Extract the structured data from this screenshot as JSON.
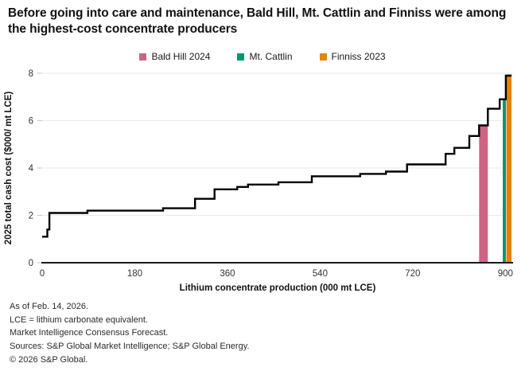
{
  "title": "Before going into care and maintenance, Bald Hill, Mt. Cattlin and Finniss were among the highest-cost concentrate producers",
  "legend": [
    {
      "label": "Bald Hill 2024",
      "color": "#ce6484"
    },
    {
      "label": "Mt. Cattlin",
      "color": "#009670"
    },
    {
      "label": "Finniss 2023",
      "color": "#e2830a"
    }
  ],
  "chart_data": {
    "type": "line",
    "subtype": "step-cost-curve",
    "xlabel": "Lithium concentrate production (000 mt LCE)",
    "ylabel": "2025 total cash cost ($000/ mt LCE)",
    "xlim": [
      0,
      915
    ],
    "ylim": [
      0,
      8
    ],
    "x_ticks": [
      0,
      180,
      360,
      540,
      720,
      900
    ],
    "y_ticks": [
      0,
      2,
      4,
      6,
      8
    ],
    "grid": "horizontal-only",
    "line_color": "#000000",
    "gridline_color": "#eaeaea",
    "axis_color": "#1a1a1a",
    "steps": [
      [
        0,
        1.1
      ],
      [
        10,
        1.4
      ],
      [
        14,
        2.1
      ],
      [
        88,
        2.2
      ],
      [
        235,
        2.3
      ],
      [
        297,
        2.7
      ],
      [
        335,
        3.1
      ],
      [
        379,
        3.2
      ],
      [
        400,
        3.3
      ],
      [
        459,
        3.4
      ],
      [
        524,
        3.65
      ],
      [
        618,
        3.75
      ],
      [
        668,
        3.85
      ],
      [
        709,
        4.15
      ],
      [
        784,
        4.6
      ],
      [
        801,
        4.85
      ],
      [
        830,
        5.35
      ],
      [
        849,
        5.8
      ],
      [
        866,
        6.5
      ],
      [
        889,
        6.9
      ],
      [
        901,
        7.9
      ],
      [
        912,
        7.9
      ]
    ],
    "highlight_bars": [
      {
        "name": "Bald Hill 2024",
        "x_start": 849,
        "x_end": 866,
        "cost": 5.8,
        "color": "#ce6484"
      },
      {
        "name": "Mt. Cattlin",
        "x_start": 895,
        "x_end": 901,
        "cost": 6.9,
        "color": "#009670"
      },
      {
        "name": "Finniss 2023",
        "x_start": 902,
        "x_end": 912,
        "cost": 7.95,
        "color": "#e2830a"
      }
    ]
  },
  "footnotes": [
    "As of Feb. 14, 2026.",
    "LCE = lithium carbonate equivalent.",
    "Market Intelligence Consensus Forecast.",
    "Sources: S&P Global Market Intelligence; S&P Global Energy.",
    "© 2026 S&P Global."
  ]
}
